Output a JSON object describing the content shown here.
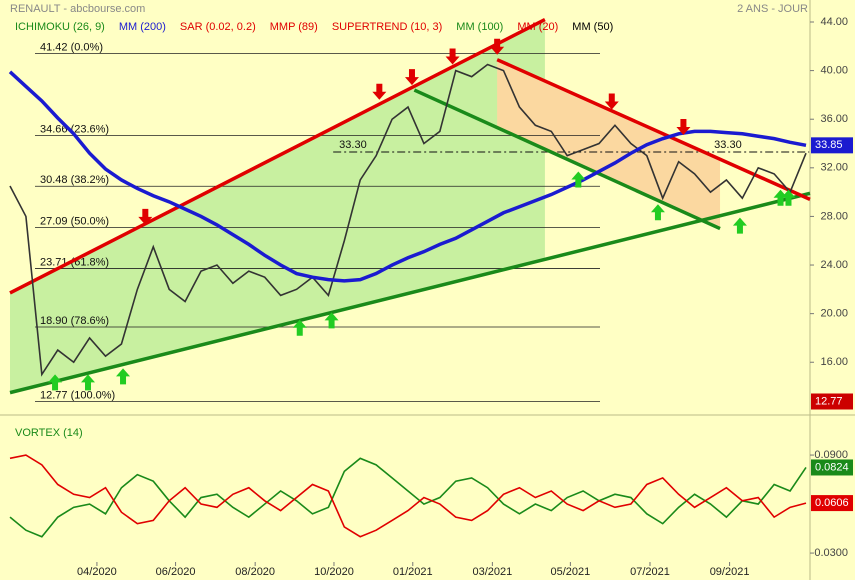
{
  "chart_data": [
    {
      "type": "line",
      "title": "RENAULT - abcbourse.com",
      "subtitle": "2 ANS - JOUR",
      "legend": [
        {
          "name": "ICHIMOKU (26, 9)",
          "color": "#1a8a1a"
        },
        {
          "name": "MM (200)",
          "color": "#1b1bd0"
        },
        {
          "name": "SAR (0.02, 0.2)",
          "color": "#e00000"
        },
        {
          "name": "MMP (89)",
          "color": "#e00000"
        },
        {
          "name": "SUPERTREND (10, 3)",
          "color": "#e00000"
        },
        {
          "name": "MM (100)",
          "color": "#1a8a1a"
        },
        {
          "name": "MM (20)",
          "color": "#e00000"
        },
        {
          "name": "MM (50)",
          "color": "#000000"
        }
      ],
      "series": [
        {
          "color": "#333333",
          "values": [
            30.5,
            28,
            15,
            17,
            16,
            18,
            16.5,
            17.5,
            22,
            25.5,
            22,
            21,
            23.5,
            24,
            22.5,
            23.5,
            23,
            21.5,
            22,
            23,
            21.5,
            26,
            31,
            33,
            36,
            37,
            34,
            35,
            40,
            39.5,
            40.5,
            40,
            37,
            35.5,
            35,
            33,
            33.5,
            34,
            35.5,
            34,
            33,
            29.5,
            32.5,
            31.5,
            30,
            31,
            29.5,
            32,
            31.5,
            30,
            33.2
          ]
        },
        {
          "color": "#1b1bd0",
          "values": [
            39.9,
            38.7,
            37.5,
            36.1,
            34.8,
            33.2,
            31.9,
            31,
            30.3,
            29.7,
            29.2,
            28.6,
            28,
            27.3,
            26.5,
            25.7,
            24.8,
            24,
            23.3,
            23,
            22.8,
            22.7,
            22.8,
            23.3,
            24,
            24.6,
            25.1,
            25.7,
            26.2,
            26.9,
            27.6,
            28.3,
            28.8,
            29.3,
            29.8,
            30.4,
            31,
            31.7,
            32.4,
            33.2,
            33.9,
            34.4,
            34.8,
            35,
            35,
            34.9,
            34.8,
            34.6,
            34.4,
            34.1,
            33.85
          ]
        }
      ],
      "xticks": [
        {
          "value": 5.46,
          "label": "04/2020"
        },
        {
          "value": 10.4,
          "label": "06/2020"
        },
        {
          "value": 15.4,
          "label": "08/2020"
        },
        {
          "value": 20.35,
          "label": "10/2020"
        },
        {
          "value": 25.3,
          "label": "01/2021"
        },
        {
          "value": 30.3,
          "label": "03/2021"
        },
        {
          "value": 35.2,
          "label": "05/2021"
        },
        {
          "value": 40.2,
          "label": "07/2021"
        },
        {
          "value": 45.2,
          "label": "09/2021"
        }
      ],
      "ylim": [
        12.07,
        45.81
      ],
      "yticks": [
        {
          "value": 16,
          "label": "16.00"
        },
        {
          "value": 20,
          "label": "20.00"
        },
        {
          "value": 24,
          "label": "24.00"
        },
        {
          "value": 28,
          "label": "28.00"
        },
        {
          "value": 32,
          "label": "32.00"
        },
        {
          "value": 36,
          "label": "36.00"
        },
        {
          "value": 40,
          "label": "40.00"
        },
        {
          "value": 44,
          "label": "44.00"
        }
      ],
      "fib_levels": [
        {
          "value": 41.42,
          "label": "41.42 (0.0%)"
        },
        {
          "value": 34.66,
          "label": "34.66 (23.6%)"
        },
        {
          "value": 30.48,
          "label": "30.48 (38.2%)"
        },
        {
          "value": 27.09,
          "label": "27.09 (50.0%)"
        },
        {
          "value": 23.71,
          "label": "23.71 (61.8%)"
        },
        {
          "value": 18.9,
          "label": "18.90 (78.6%)"
        },
        {
          "value": 12.77,
          "label": "12.77 (100.0%)"
        }
      ],
      "level": {
        "value": 33.3,
        "label": "33.30",
        "x": [
          20.3,
          50.2
        ]
      },
      "trendlines": [
        {
          "color": "#e00000",
          "x": [
            0,
            33.6
          ],
          "y": [
            21.7,
            44.2
          ]
        },
        {
          "color": "#1a8a1a",
          "x": [
            0,
            50.25
          ],
          "y": [
            13.5,
            29.9
          ]
        },
        {
          "color": "#e00000",
          "x": [
            30.6,
            50.25
          ],
          "y": [
            40.9,
            29.4
          ]
        },
        {
          "color": "#1a8a1a",
          "x": [
            25.4,
            44.6
          ],
          "y": [
            38.4,
            27.0
          ]
        }
      ],
      "sell_signals": {
        "color": "#e00000",
        "x": [
          8.5,
          23.2,
          25.25,
          27.8,
          30.6,
          37.8,
          42.3
        ],
        "y": [
          27.3,
          37.6,
          38.8,
          40.5,
          41.3,
          36.8,
          34.7
        ]
      },
      "buy_signals": {
        "color": "#22cc22",
        "x": [
          2.83,
          4.9,
          7.1,
          18.2,
          20.2,
          35.7,
          40.7,
          45.85,
          48.4,
          48.9
        ],
        "y": [
          15.0,
          15.0,
          15.5,
          19.5,
          20.1,
          31.7,
          29.0,
          27.9,
          30.2,
          30.2
        ]
      }
    },
    {
      "type": "line",
      "title": "VORTEX (14)",
      "series": [
        {
          "color": "#1a8a1a",
          "values": [
            0.052,
            0.044,
            0.04,
            0.052,
            0.058,
            0.06,
            0.054,
            0.07,
            0.078,
            0.074,
            0.062,
            0.052,
            0.064,
            0.066,
            0.058,
            0.052,
            0.06,
            0.068,
            0.062,
            0.054,
            0.058,
            0.08,
            0.088,
            0.084,
            0.076,
            0.068,
            0.06,
            0.064,
            0.074,
            0.076,
            0.07,
            0.06,
            0.054,
            0.06,
            0.056,
            0.064,
            0.068,
            0.062,
            0.066,
            0.064,
            0.054,
            0.048,
            0.058,
            0.066,
            0.06,
            0.052,
            0.062,
            0.06,
            0.072,
            0.068,
            0.0824
          ]
        },
        {
          "color": "#e00000",
          "values": [
            0.088,
            0.09,
            0.084,
            0.072,
            0.066,
            0.064,
            0.07,
            0.055,
            0.048,
            0.05,
            0.062,
            0.07,
            0.06,
            0.058,
            0.066,
            0.07,
            0.062,
            0.056,
            0.064,
            0.072,
            0.068,
            0.046,
            0.04,
            0.044,
            0.05,
            0.056,
            0.064,
            0.06,
            0.052,
            0.05,
            0.056,
            0.066,
            0.07,
            0.064,
            0.068,
            0.06,
            0.056,
            0.062,
            0.058,
            0.06,
            0.072,
            0.076,
            0.066,
            0.058,
            0.064,
            0.07,
            0.062,
            0.064,
            0.052,
            0.058,
            0.0606
          ]
        }
      ],
      "ylim": [
        0.0227,
        0.1084
      ],
      "yticks": [
        {
          "value": 0.03,
          "label": "0.0300"
        },
        {
          "value": 0.09,
          "label": "0.0900"
        }
      ]
    }
  ]
}
